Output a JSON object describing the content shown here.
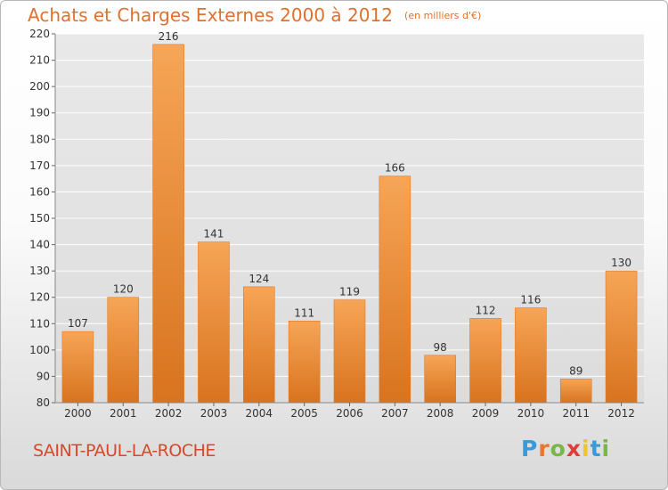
{
  "header": {
    "title": "Achats et Charges Externes 2000 à 2012",
    "subtitle": "(en milliers d'€)"
  },
  "commune": "SAINT-PAUL-LA-ROCHE",
  "brand": {
    "letters": [
      "P",
      "r",
      "o",
      "x",
      "i",
      "t",
      "i"
    ],
    "colors": [
      "#3a9ad9",
      "#e8762b",
      "#7ab648",
      "#e23b3b",
      "#f2c12e",
      "#3a9ad9",
      "#7ab648"
    ]
  },
  "chart_data": {
    "type": "bar",
    "categories": [
      "2000",
      "2001",
      "2002",
      "2003",
      "2004",
      "2005",
      "2006",
      "2007",
      "2008",
      "2009",
      "2010",
      "2011",
      "2012"
    ],
    "values": [
      107,
      120,
      216,
      141,
      124,
      111,
      119,
      166,
      98,
      112,
      116,
      89,
      130
    ],
    "ylim": [
      80,
      220
    ],
    "yticks": [
      80,
      90,
      100,
      110,
      120,
      130,
      140,
      150,
      160,
      170,
      180,
      190,
      200,
      210,
      220
    ],
    "grid": true,
    "bar_color_light": "#f6a556",
    "bar_color_dark": "#d8731f",
    "xlabel": "",
    "ylabel": ""
  }
}
